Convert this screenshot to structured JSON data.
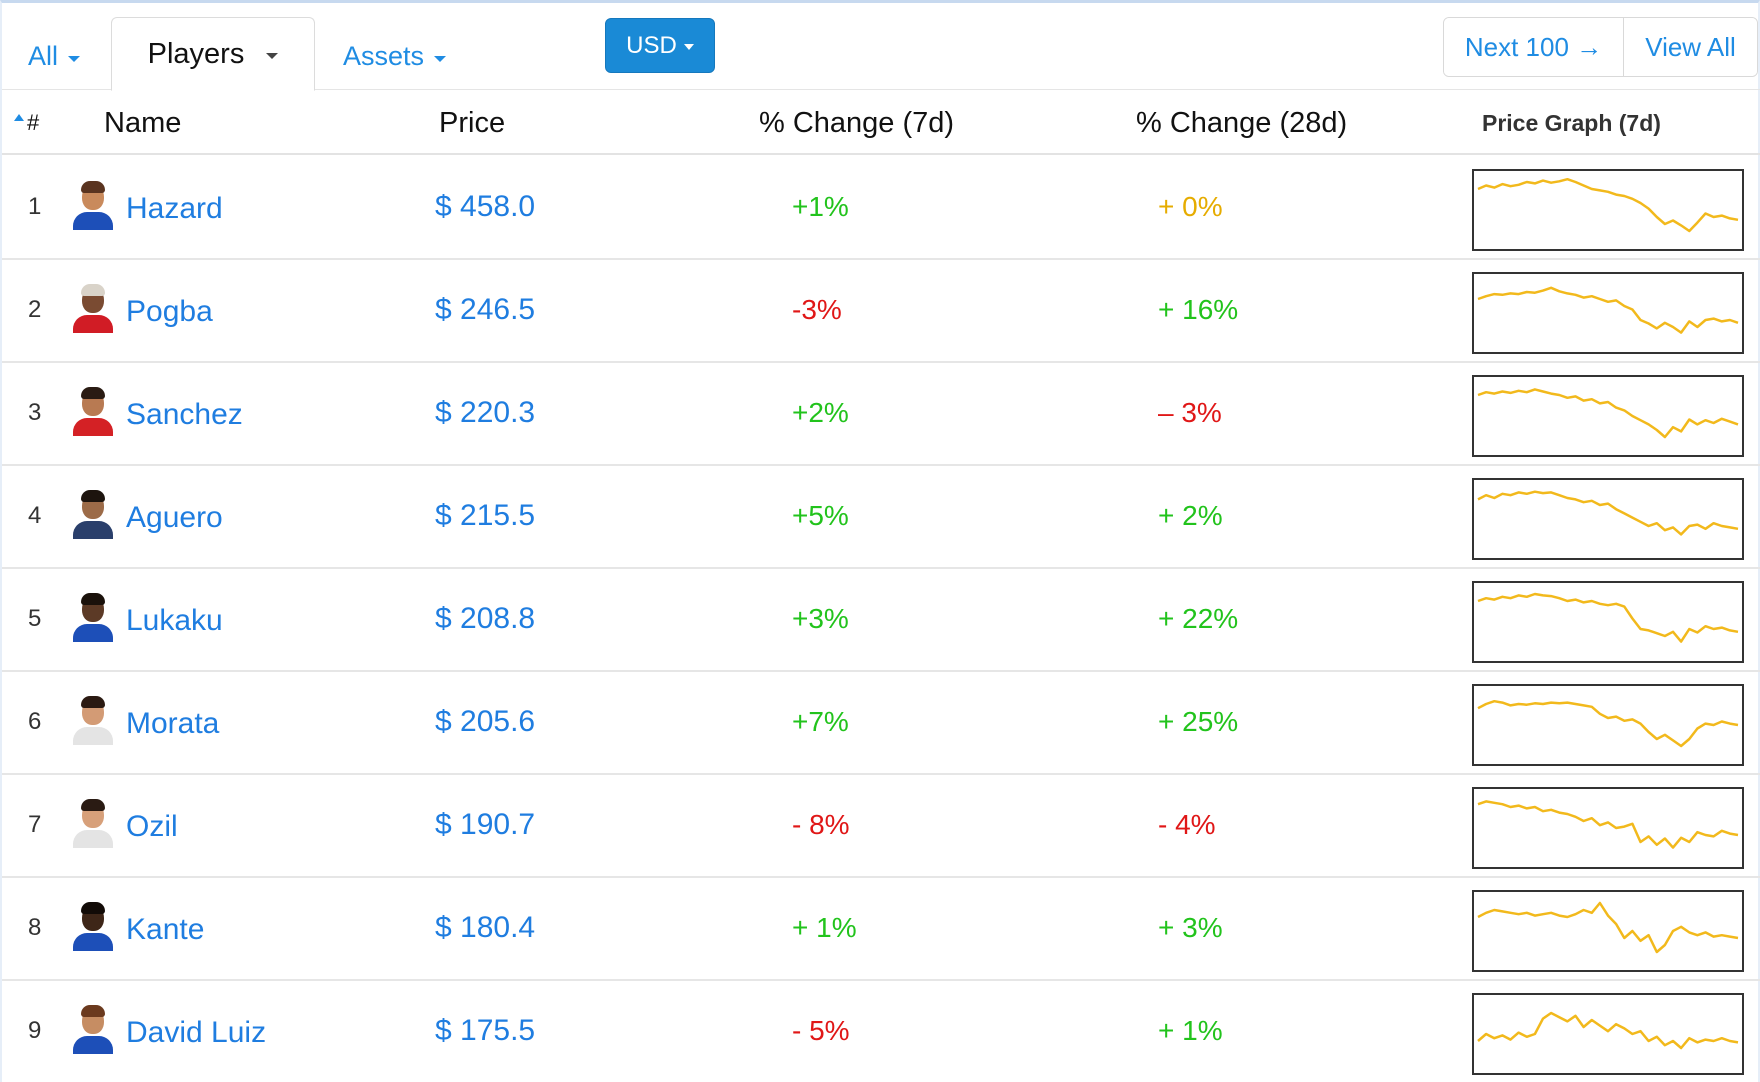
{
  "nav": {
    "tabs": [
      {
        "label": "All",
        "active": false
      },
      {
        "label": "Players",
        "active": true
      },
      {
        "label": "Assets",
        "active": false
      }
    ],
    "currency": "USD",
    "next_label": "Next 100 →",
    "view_all_label": "View All"
  },
  "table": {
    "headers": {
      "rank": "#",
      "name": "Name",
      "price": "Price",
      "change_7d": "% Change (7d)",
      "change_28d": "% Change (28d)",
      "graph": "Price Graph (7d)"
    },
    "colors": {
      "positive": "#22c31c",
      "negative": "#e01717",
      "neutral": "#e6ac00",
      "sparkline": "#f2b91c"
    },
    "rows": [
      {
        "rank": "1",
        "name": "Hazard",
        "price": "$ 458.0",
        "change_7d": "+1%",
        "change_7d_status": "positive",
        "change_28d": "+ 0%",
        "change_28d_status": "neutral",
        "avatar": {
          "skin": "#c98a5c",
          "hair": "#5a3420",
          "shirt": "#1d4fb8"
        },
        "sparkline": [
          80,
          85,
          82,
          87,
          84,
          86,
          90,
          88,
          92,
          89,
          91,
          94,
          90,
          85,
          80,
          78,
          76,
          72,
          70,
          66,
          60,
          52,
          40,
          30,
          35,
          28,
          20,
          32,
          45,
          40,
          42,
          38,
          36
        ]
      },
      {
        "rank": "2",
        "name": "Pogba",
        "price": "$ 246.5",
        "change_7d": "-3%",
        "change_7d_status": "negative",
        "change_28d": "+ 16%",
        "change_28d_status": "positive",
        "avatar": {
          "skin": "#7a4b32",
          "hair": "#d9d3c9",
          "shirt": "#d11c25"
        },
        "sparkline": [
          70,
          74,
          77,
          76,
          78,
          77,
          80,
          79,
          82,
          86,
          81,
          78,
          76,
          72,
          74,
          70,
          66,
          68,
          60,
          55,
          40,
          35,
          28,
          36,
          30,
          22,
          38,
          30,
          40,
          42,
          38,
          40,
          36
        ]
      },
      {
        "rank": "3",
        "name": "Sanchez",
        "price": "$ 220.3",
        "change_7d": "+2%",
        "change_7d_status": "positive",
        "change_28d": "– 3%",
        "change_28d_status": "negative",
        "avatar": {
          "skin": "#b87a52",
          "hair": "#2a1b13",
          "shirt": "#d42125"
        },
        "sparkline": [
          80,
          84,
          82,
          85,
          83,
          86,
          84,
          88,
          85,
          82,
          80,
          76,
          78,
          72,
          74,
          68,
          70,
          62,
          58,
          50,
          44,
          38,
          30,
          20,
          34,
          28,
          45,
          38,
          44,
          40,
          46,
          42,
          38
        ]
      },
      {
        "rank": "4",
        "name": "Aguero",
        "price": "$ 215.5",
        "change_7d": "+5%",
        "change_7d_status": "positive",
        "change_28d": "+ 2%",
        "change_28d_status": "positive",
        "avatar": {
          "skin": "#9c6b48",
          "hair": "#1d140e",
          "shirt": "#2a3f6b"
        },
        "sparkline": [
          78,
          84,
          80,
          86,
          84,
          88,
          86,
          89,
          87,
          88,
          84,
          80,
          78,
          74,
          76,
          70,
          72,
          64,
          58,
          52,
          46,
          40,
          44,
          34,
          38,
          28,
          40,
          42,
          36,
          44,
          40,
          38,
          36
        ]
      },
      {
        "rank": "5",
        "name": "Lukaku",
        "price": "$ 208.8",
        "change_7d": "+3%",
        "change_7d_status": "positive",
        "change_28d": "+ 22%",
        "change_28d_status": "positive",
        "avatar": {
          "skin": "#5c3a26",
          "hair": "#1a110b",
          "shirt": "#1d4fb8"
        },
        "sparkline": [
          80,
          84,
          82,
          86,
          84,
          88,
          86,
          90,
          88,
          87,
          84,
          80,
          82,
          78,
          80,
          76,
          74,
          76,
          72,
          55,
          40,
          38,
          34,
          30,
          36,
          22,
          40,
          35,
          44,
          40,
          42,
          38,
          36
        ]
      },
      {
        "rank": "6",
        "name": "Morata",
        "price": "$ 205.6",
        "change_7d": "+7%",
        "change_7d_status": "positive",
        "change_28d": "+ 25%",
        "change_28d_status": "positive",
        "avatar": {
          "skin": "#d39b75",
          "hair": "#2b1a12",
          "shirt": "#e4e4e4"
        },
        "sparkline": [
          74,
          80,
          84,
          82,
          78,
          80,
          79,
          81,
          80,
          82,
          81,
          82,
          80,
          78,
          76,
          66,
          60,
          62,
          56,
          58,
          52,
          40,
          30,
          36,
          28,
          20,
          30,
          45,
          52,
          50,
          55,
          52,
          50
        ]
      },
      {
        "rank": "7",
        "name": "Ozil",
        "price": "$ 190.7",
        "change_7d": "- 8%",
        "change_7d_status": "negative",
        "change_28d": "- 4%",
        "change_28d_status": "negative",
        "avatar": {
          "skin": "#d7a07a",
          "hair": "#2a1b13",
          "shirt": "#e4e4e4"
        },
        "sparkline": [
          84,
          88,
          86,
          84,
          80,
          82,
          78,
          80,
          74,
          76,
          72,
          70,
          66,
          60,
          64,
          54,
          58,
          50,
          52,
          56,
          30,
          38,
          26,
          35,
          22,
          36,
          30,
          44,
          40,
          38,
          46,
          42,
          40
        ]
      },
      {
        "rank": "8",
        "name": "Kante",
        "price": "$ 180.4",
        "change_7d": "+ 1%",
        "change_7d_status": "positive",
        "change_28d": "+ 3%",
        "change_28d_status": "positive",
        "avatar": {
          "skin": "#3e2618",
          "hair": "#120b07",
          "shirt": "#1d4fb8"
        },
        "sparkline": [
          70,
          76,
          80,
          78,
          76,
          74,
          76,
          72,
          74,
          76,
          72,
          70,
          74,
          80,
          76,
          90,
          72,
          60,
          40,
          50,
          36,
          44,
          20,
          30,
          50,
          56,
          48,
          44,
          48,
          42,
          44,
          42,
          40
        ]
      },
      {
        "rank": "9",
        "name": "David Luiz",
        "price": "$ 175.5",
        "change_7d": "- 5%",
        "change_7d_status": "negative",
        "change_28d": "+ 1%",
        "change_28d_status": "positive",
        "avatar": {
          "skin": "#c68d63",
          "hair": "#6b3a1e",
          "shirt": "#1d4fb8"
        },
        "sparkline": [
          40,
          50,
          44,
          48,
          42,
          52,
          46,
          50,
          72,
          80,
          74,
          68,
          76,
          60,
          70,
          62,
          54,
          64,
          58,
          50,
          54,
          40,
          46,
          34,
          40,
          30,
          44,
          38,
          42,
          40,
          44,
          40,
          38
        ]
      }
    ]
  }
}
